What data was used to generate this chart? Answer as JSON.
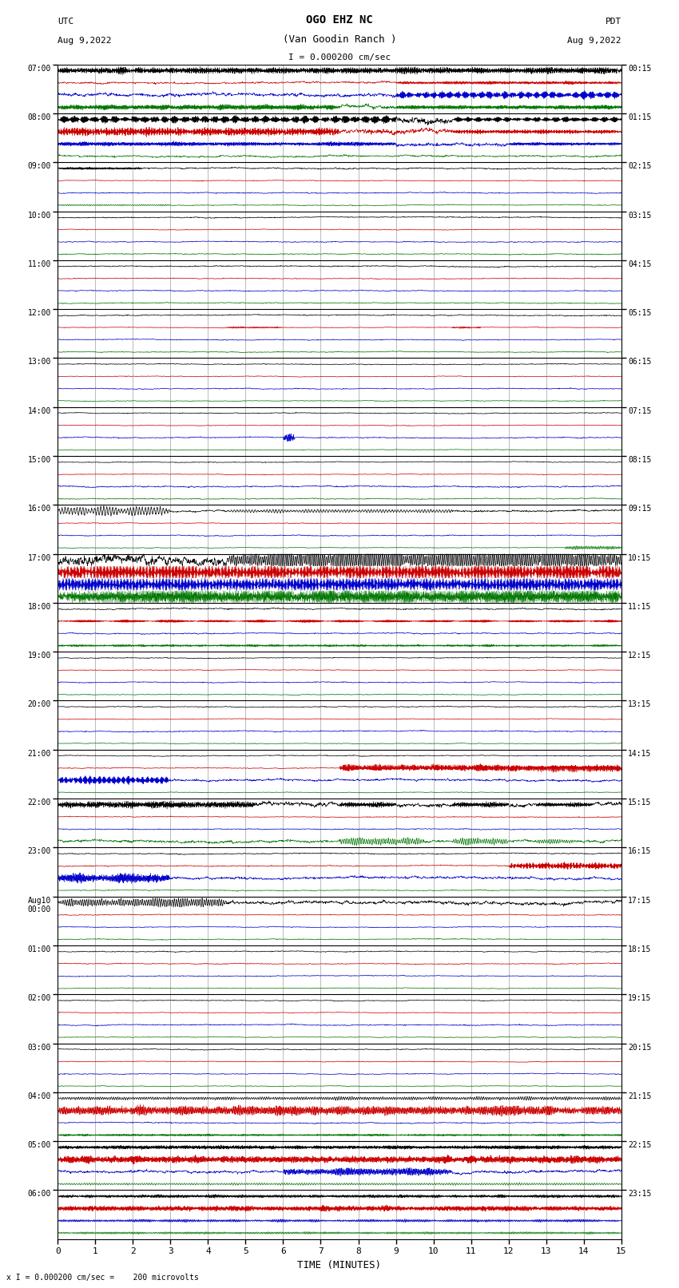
{
  "title_line1": "OGO EHZ NC",
  "title_line2": "(Van Goodin Ranch )",
  "scale_label": "I = 0.000200 cm/sec",
  "bottom_label": "x I = 0.000200 cm/sec =    200 microvolts",
  "utc_label": "UTC",
  "utc_date": "Aug 9,2022",
  "pdt_label": "PDT",
  "pdt_date": "Aug 9,2022",
  "xlabel": "TIME (MINUTES)",
  "xlim": [
    0,
    15
  ],
  "xticks": [
    0,
    1,
    2,
    3,
    4,
    5,
    6,
    7,
    8,
    9,
    10,
    11,
    12,
    13,
    14,
    15
  ],
  "background_color": "#ffffff",
  "grid_color": "#b0b0b0",
  "vgrid_color": "#b0b0b0",
  "hline_color": "#000000",
  "trace_colors": [
    "#000000",
    "#cc0000",
    "#0000cc",
    "#007700"
  ],
  "left_labels": [
    "07:00",
    "08:00",
    "09:00",
    "10:00",
    "11:00",
    "12:00",
    "13:00",
    "14:00",
    "15:00",
    "16:00",
    "17:00",
    "18:00",
    "19:00",
    "20:00",
    "21:00",
    "22:00",
    "23:00",
    "Aug10\n00:00",
    "01:00",
    "02:00",
    "03:00",
    "04:00",
    "05:00",
    "06:00"
  ],
  "right_labels": [
    "00:15",
    "01:15",
    "02:15",
    "03:15",
    "04:15",
    "05:15",
    "06:15",
    "07:15",
    "08:15",
    "09:15",
    "10:15",
    "11:15",
    "12:15",
    "13:15",
    "14:15",
    "15:15",
    "16:15",
    "17:15",
    "18:15",
    "19:15",
    "20:15",
    "21:15",
    "22:15",
    "23:15"
  ],
  "fig_width": 8.5,
  "fig_height": 16.13,
  "dpi": 100
}
